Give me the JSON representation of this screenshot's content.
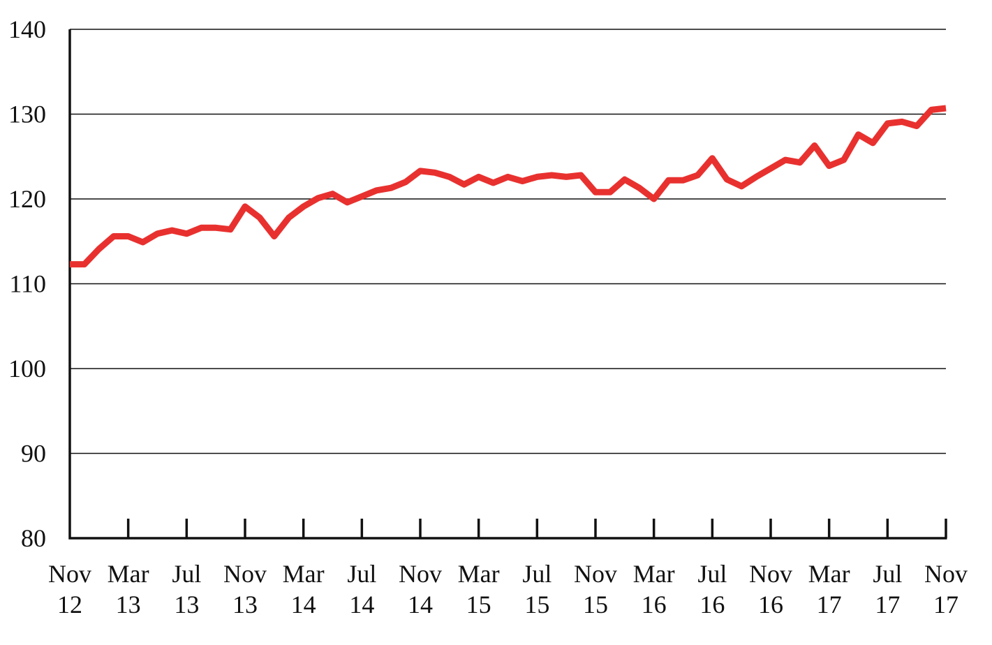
{
  "chart_data": {
    "type": "line",
    "title": "",
    "xlabel": "",
    "ylabel": "",
    "ylim": [
      80,
      140
    ],
    "yticks": [
      80,
      90,
      100,
      110,
      120,
      130,
      140
    ],
    "grid": true,
    "x_tick_labels": [
      {
        "month": "Nov",
        "year": "12"
      },
      {
        "month": "Mar",
        "year": "13"
      },
      {
        "month": "Jul",
        "year": "13"
      },
      {
        "month": "Nov",
        "year": "13"
      },
      {
        "month": "Mar",
        "year": "14"
      },
      {
        "month": "Jul",
        "year": "14"
      },
      {
        "month": "Nov",
        "year": "14"
      },
      {
        "month": "Mar",
        "year": "15"
      },
      {
        "month": "Jul",
        "year": "15"
      },
      {
        "month": "Nov",
        "year": "15"
      },
      {
        "month": "Mar",
        "year": "16"
      },
      {
        "month": "Jul",
        "year": "16"
      },
      {
        "month": "Nov",
        "year": "16"
      },
      {
        "month": "Mar",
        "year": "17"
      },
      {
        "month": "Jul",
        "year": "17"
      },
      {
        "month": "Nov",
        "year": "17"
      }
    ],
    "series": [
      {
        "color": "#e8312f",
        "x": [
          "Nov 12",
          "Dec 12",
          "Jan 13",
          "Feb 13",
          "Mar 13",
          "Apr 13",
          "May 13",
          "Jun 13",
          "Jul 13",
          "Aug 13",
          "Sep 13",
          "Oct 13",
          "Nov 13",
          "Dec 13",
          "Jan 14",
          "Feb 14",
          "Mar 14",
          "Apr 14",
          "May 14",
          "Jun 14",
          "Jul 14",
          "Aug 14",
          "Sep 14",
          "Oct 14",
          "Nov 14",
          "Dec 14",
          "Jan 15",
          "Feb 15",
          "Mar 15",
          "Apr 15",
          "May 15",
          "Jun 15",
          "Jul 15",
          "Aug 15",
          "Sep 15",
          "Oct 15",
          "Nov 15",
          "Dec 15",
          "Jan 16",
          "Feb 16",
          "Mar 16",
          "Apr 16",
          "May 16",
          "Jun 16",
          "Jul 16",
          "Aug 16",
          "Sep 16",
          "Oct 16",
          "Nov 16",
          "Dec 16",
          "Jan 17",
          "Feb 17",
          "Mar 17",
          "Apr 17",
          "May 17",
          "Jun 17",
          "Jul 17",
          "Aug 17",
          "Sep 17",
          "Oct 17",
          "Nov 17"
        ],
        "values": [
          112.3,
          112.3,
          114.1,
          115.6,
          115.6,
          114.9,
          115.9,
          116.3,
          115.9,
          116.6,
          116.6,
          116.4,
          119.1,
          117.8,
          115.6,
          117.8,
          119.1,
          120.1,
          120.6,
          119.6,
          120.3,
          121.0,
          121.3,
          122.0,
          123.3,
          123.1,
          122.6,
          121.7,
          122.6,
          121.9,
          122.6,
          122.1,
          122.6,
          122.8,
          122.6,
          122.8,
          120.8,
          120.8,
          122.3,
          121.3,
          120.0,
          122.2,
          122.2,
          122.8,
          124.8,
          122.3,
          121.5,
          122.6,
          123.6,
          124.6,
          124.3,
          126.3,
          123.9,
          124.6,
          127.6,
          126.6,
          128.9,
          129.1,
          128.6,
          130.5,
          130.7
        ]
      }
    ]
  }
}
